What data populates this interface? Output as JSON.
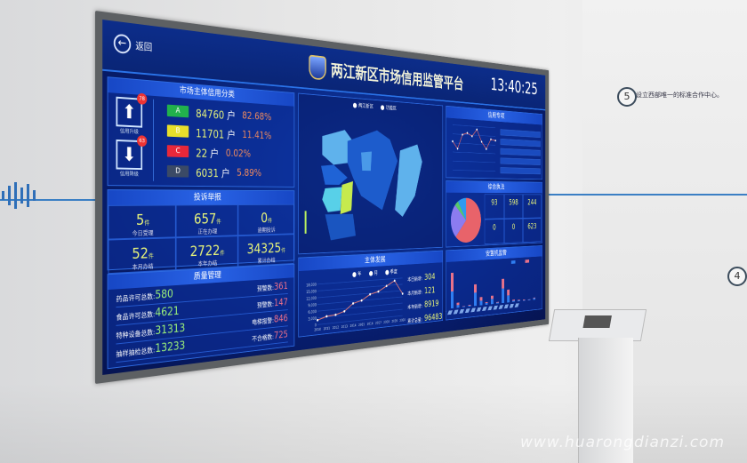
{
  "header": {
    "back_label": "返回",
    "title": "两江新区市场信用监管平台",
    "time": "13:40:25"
  },
  "credit": {
    "title": "市场主体信用分类",
    "upgrade_label": "信用升级",
    "upgrade_count": "78",
    "downgrade_label": "信用降级",
    "downgrade_count": "63",
    "rows": [
      {
        "grade": "A",
        "count": "84760",
        "unit": "户",
        "pct": "82.68%",
        "color": "#22b14c"
      },
      {
        "grade": "B",
        "count": "11701",
        "unit": "户",
        "pct": "11.41%",
        "color": "#e8df2a"
      },
      {
        "grade": "C",
        "count": "22",
        "unit": "户",
        "pct": "0.02%",
        "color": "#e8283a"
      },
      {
        "grade": "D",
        "count": "6031",
        "unit": "户",
        "pct": "5.89%",
        "color": "#3b4a66"
      }
    ]
  },
  "complaints": {
    "title": "投诉举报",
    "unit": "件",
    "cells": [
      {
        "value": "5",
        "label": "今日受理"
      },
      {
        "value": "657",
        "label": "正在办理"
      },
      {
        "value": "0",
        "label": "逾期投诉"
      },
      {
        "value": "52",
        "label": "本月办结"
      },
      {
        "value": "2722",
        "label": "本年办结"
      },
      {
        "value": "34325",
        "label": "累计办结"
      }
    ]
  },
  "quality": {
    "title": "质量管理",
    "left": [
      {
        "label": "药品许可总数:",
        "value": "580"
      },
      {
        "label": "食品许可总数:",
        "value": "4621"
      },
      {
        "label": "特种设备总数:",
        "value": "31313"
      },
      {
        "label": "抽样抽检总数:",
        "value": "13233"
      }
    ],
    "right": [
      {
        "label": "预警数:",
        "value": "361"
      },
      {
        "label": "预警数:",
        "value": "147"
      },
      {
        "label": "电梯报警:",
        "value": "846"
      },
      {
        "label": "不合格数:",
        "value": "725"
      }
    ]
  },
  "map": {
    "legend": [
      "两江新区",
      "功能区"
    ]
  },
  "growth": {
    "title": "主体发展",
    "legend": [
      "年",
      "月",
      "季度"
    ],
    "stats": [
      {
        "label": "本日新增:",
        "value": "304"
      },
      {
        "label": "本月新增:",
        "value": "121"
      },
      {
        "label": "本年新增:",
        "value": "8919"
      },
      {
        "label": "累计总量:",
        "value": "96483"
      }
    ]
  },
  "enforce": {
    "title": "综合执法",
    "cells": [
      {
        "value": "93"
      },
      {
        "value": "598"
      },
      {
        "value": "244"
      },
      {
        "value": "0"
      },
      {
        "value": "0"
      },
      {
        "value": "623"
      }
    ]
  },
  "trend": {
    "title": "信用专项"
  },
  "monitor": {
    "title": "安置机监管"
  },
  "wall": {
    "step5": "5",
    "step4": "4",
    "title": "设立西部唯一的标准合作中心。"
  },
  "colors": {
    "accent": "#2a73e8",
    "screen_bg": "#0a2576",
    "highlight": "#e9f57a"
  },
  "chart_data": [
    {
      "type": "line",
      "title": "主体发展",
      "x": [
        "2010",
        "2011",
        "2012",
        "2013",
        "2014",
        "2015",
        "2016",
        "2017",
        "2018",
        "2019",
        "2020"
      ],
      "values": [
        2000,
        3300,
        3600,
        4800,
        8000,
        9000,
        11500,
        12500,
        14800,
        17000,
        10500
      ],
      "ylim": [
        0,
        18000
      ],
      "yticks": [
        "0",
        "3,000",
        "6,000",
        "9,000",
        "12,000",
        "15,000",
        "18,000"
      ],
      "grid": true
    },
    {
      "type": "line",
      "title": "信用专项",
      "values": [
        1400,
        1050,
        1750,
        1850,
        1700,
        2050,
        1450,
        1100,
        1600,
        1550
      ]
    },
    {
      "type": "pie",
      "title": "综合执法",
      "values": [
        62,
        25,
        4,
        9
      ],
      "colors": [
        "#e8636a",
        "#8c7cf0",
        "#58c86a",
        "#2f9af0"
      ]
    },
    {
      "type": "bar",
      "title": "安置机监管",
      "series": [
        {
          "values": [
            50,
            8,
            2,
            3,
            40,
            14,
            5,
            16,
            3,
            45,
            22,
            4,
            3,
            2,
            2,
            5
          ]
        },
        {
          "values": [
            55,
            7,
            1,
            2,
            25,
            11,
            3,
            10,
            2,
            30,
            18,
            3,
            2,
            2,
            1,
            2
          ]
        }
      ],
      "colors": [
        "#2f7df0",
        "#e8728a"
      ]
    }
  ]
}
